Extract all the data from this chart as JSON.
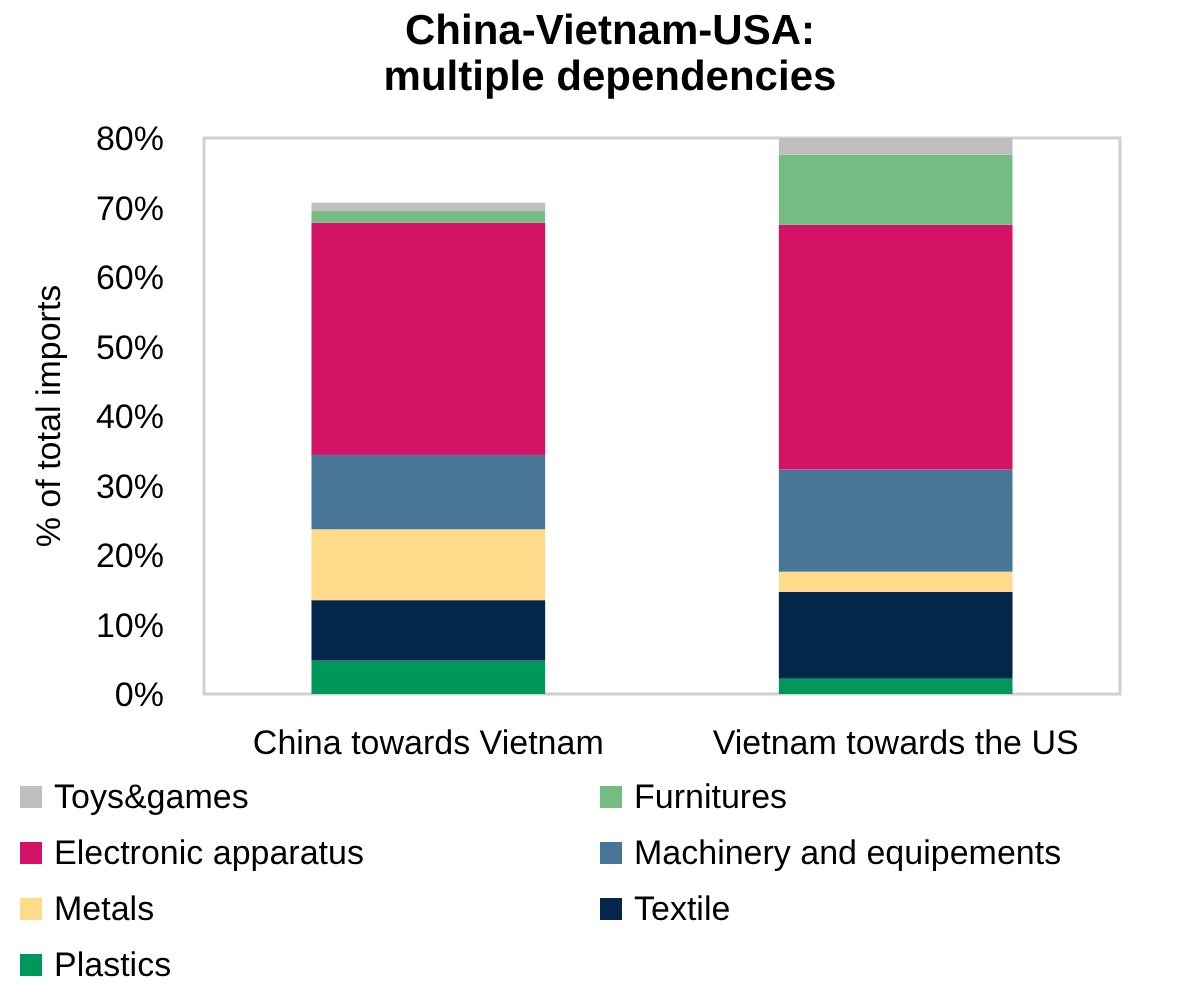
{
  "chart_data": {
    "type": "bar",
    "title": "China-Vietnam-USA:\nmultiple dependencies",
    "ylabel": "% of total imports",
    "categories": [
      "China towards Vietnam",
      "Vietnam towards the US"
    ],
    "stacked": true,
    "ylim": [
      0,
      80
    ],
    "yticks": [
      {
        "value": 0,
        "label": "0%"
      },
      {
        "value": 10,
        "label": "10%"
      },
      {
        "value": 20,
        "label": "20%"
      },
      {
        "value": 30,
        "label": "30%"
      },
      {
        "value": 40,
        "label": "40%"
      },
      {
        "value": 50,
        "label": "50%"
      },
      {
        "value": 60,
        "label": "60%"
      },
      {
        "value": 70,
        "label": "70%"
      },
      {
        "value": 80,
        "label": "80%"
      }
    ],
    "legend": "bottom",
    "series": [
      {
        "name": "Plastics",
        "color": "#00985a",
        "values": [
          4.8,
          2.2
        ]
      },
      {
        "name": "Textile",
        "color": "#03264a",
        "values": [
          8.7,
          12.5
        ]
      },
      {
        "name": "Metals",
        "color": "#fedb8a",
        "values": [
          10.2,
          2.9
        ]
      },
      {
        "name": "Machinery and equipements",
        "color": "#497697",
        "values": [
          10.7,
          14.7
        ]
      },
      {
        "name": "Electronic apparatus",
        "color": "#d41367",
        "values": [
          33.4,
          35.2
        ]
      },
      {
        "name": "Furnitures",
        "color": "#75bc82",
        "values": [
          1.7,
          10.1
        ]
      },
      {
        "name": "Toys&games",
        "color": "#bfbfbf",
        "values": [
          1.2,
          2.4
        ]
      }
    ]
  }
}
